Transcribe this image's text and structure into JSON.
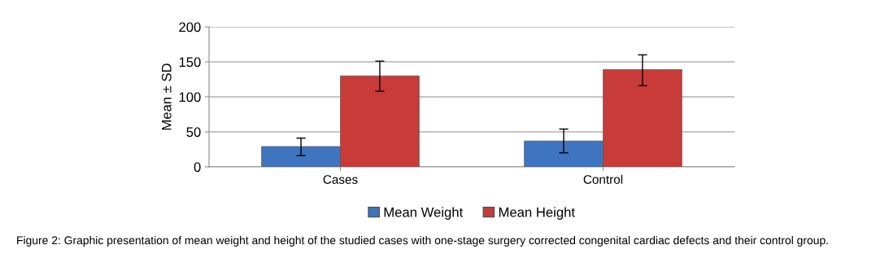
{
  "chart_data": {
    "type": "bar",
    "ylabel": "Mean ± SD",
    "categories": [
      "Cases",
      "Control"
    ],
    "series": [
      {
        "name": "Mean Weight",
        "color": "#3f74c0",
        "values": [
          29,
          37
        ],
        "errors": [
          [
            16,
            41
          ],
          [
            20,
            54
          ]
        ]
      },
      {
        "name": "Mean Height",
        "color": "#c83b38",
        "values": [
          130,
          139
        ],
        "errors": [
          [
            108,
            151
          ],
          [
            116,
            160
          ]
        ]
      }
    ],
    "ylim": [
      0,
      200
    ],
    "yticks": [
      0,
      50,
      100,
      150,
      200
    ],
    "grid": "y",
    "legend": "bottom",
    "annotations": [
      "Figure 2: Graphic presentation of mean weight and height of the studied cases with one-stage surgery corrected congenital cardiac defects and their control group."
    ]
  }
}
